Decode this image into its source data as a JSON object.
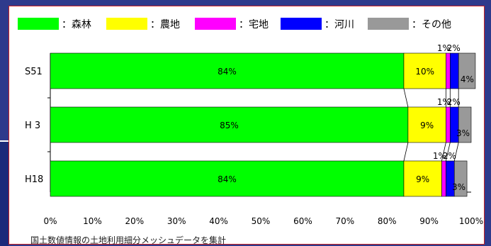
{
  "chart_data": {
    "type": "bar",
    "orientation": "horizontal",
    "stacked": true,
    "percent": true,
    "categories": [
      "S51",
      "H 3",
      "H18"
    ],
    "series": [
      {
        "name": "：森林",
        "color": "#00ff00",
        "values": [
          84,
          85,
          84
        ],
        "labels": [
          "84%",
          "85%",
          "84%"
        ]
      },
      {
        "name": "：農地",
        "color": "#ffff00",
        "values": [
          10,
          9,
          9
        ],
        "labels": [
          "10%",
          "9%",
          "9%"
        ]
      },
      {
        "name": "：宅地",
        "color": "#ff00ff",
        "values": [
          1,
          1,
          1
        ],
        "labels": [
          "1%",
          "1%",
          "1%"
        ]
      },
      {
        "name": "：河川",
        "color": "#0000ff",
        "values": [
          2,
          2,
          2
        ],
        "labels": [
          "2%",
          "2%",
          "2%"
        ]
      },
      {
        "name": "：その他",
        "color": "#999999",
        "values": [
          4,
          3,
          3
        ],
        "labels": [
          "4%",
          "3%",
          "3%"
        ]
      }
    ],
    "xlim": [
      0,
      100
    ],
    "xticks": [
      "0%",
      "10%",
      "20%",
      "30%",
      "40%",
      "50%",
      "60%",
      "70%",
      "80%",
      "90%",
      "100%"
    ],
    "legend_position": "top",
    "grid": false,
    "connector_lines": true,
    "note": "国土数値情報の土地利用細分メッシュデータを集計"
  }
}
